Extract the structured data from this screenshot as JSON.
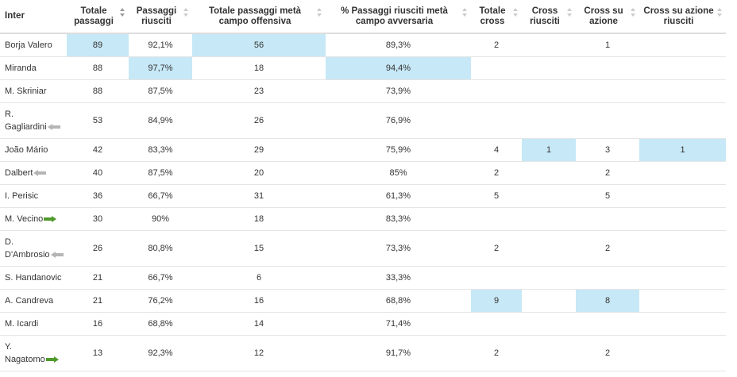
{
  "table": {
    "team": "Inter",
    "headers": [
      "Totale passaggi",
      "Passaggi riusciti",
      "Totale passaggi metà campo offensiva",
      "% Passaggi riusciti metà campo avversaria",
      "Totale cross",
      "Cross riusciti",
      "Cross su azione",
      "Cross su azione riusciti"
    ],
    "rows": [
      {
        "name_line1": "Borja Valero",
        "name_line2": "",
        "arrow": "none",
        "cells": [
          "89",
          "92,1%",
          "56",
          "89,3%",
          "2",
          "",
          "1",
          ""
        ]
      },
      {
        "name_line1": "Miranda",
        "name_line2": "",
        "arrow": "none",
        "cells": [
          "88",
          "97,7%",
          "18",
          "94,4%",
          "",
          "",
          "",
          ""
        ]
      },
      {
        "name_line1": "M. Skriniar",
        "name_line2": "",
        "arrow": "none",
        "cells": [
          "88",
          "87,5%",
          "23",
          "73,9%",
          "",
          "",
          "",
          ""
        ]
      },
      {
        "name_line1": "R.",
        "name_line2": "Gagliardini",
        "arrow": "out",
        "cells": [
          "53",
          "84,9%",
          "26",
          "76,9%",
          "",
          "",
          "",
          ""
        ]
      },
      {
        "name_line1": "João Mário",
        "name_line2": "",
        "arrow": "none",
        "cells": [
          "42",
          "83,3%",
          "29",
          "75,9%",
          "4",
          "1",
          "3",
          "1"
        ]
      },
      {
        "name_line1": "Dalbert",
        "name_line2": "",
        "arrow": "out",
        "cells": [
          "40",
          "87,5%",
          "20",
          "85%",
          "2",
          "",
          "2",
          ""
        ]
      },
      {
        "name_line1": "I. Perisic",
        "name_line2": "",
        "arrow": "none",
        "cells": [
          "36",
          "66,7%",
          "31",
          "61,3%",
          "5",
          "",
          "5",
          ""
        ]
      },
      {
        "name_line1": "M. Vecino",
        "name_line2": "",
        "arrow": "in",
        "cells": [
          "30",
          "90%",
          "18",
          "83,3%",
          "",
          "",
          "",
          ""
        ]
      },
      {
        "name_line1": "D.",
        "name_line2": "D'Ambrosio",
        "arrow": "out",
        "cells": [
          "26",
          "80,8%",
          "15",
          "73,3%",
          "2",
          "",
          "2",
          ""
        ]
      },
      {
        "name_line1": "S. Handanovic",
        "name_line2": "",
        "arrow": "none",
        "cells": [
          "21",
          "66,7%",
          "6",
          "33,3%",
          "",
          "",
          "",
          ""
        ]
      },
      {
        "name_line1": "A. Candreva",
        "name_line2": "",
        "arrow": "none",
        "cells": [
          "21",
          "76,2%",
          "16",
          "68,8%",
          "9",
          "",
          "8",
          ""
        ]
      },
      {
        "name_line1": "M. Icardi",
        "name_line2": "",
        "arrow": "none",
        "cells": [
          "16",
          "68,8%",
          "14",
          "71,4%",
          "",
          "",
          "",
          ""
        ]
      },
      {
        "name_line1": "Y.",
        "name_line2": "Nagatomo",
        "arrow": "in",
        "cells": [
          "13",
          "92,3%",
          "12",
          "91,7%",
          "2",
          "",
          "2",
          ""
        ]
      }
    ],
    "highlight_color": "#c7e8f6",
    "arrow_colors": {
      "out": "#b5b5b5",
      "in": "#4e9a2a"
    }
  }
}
